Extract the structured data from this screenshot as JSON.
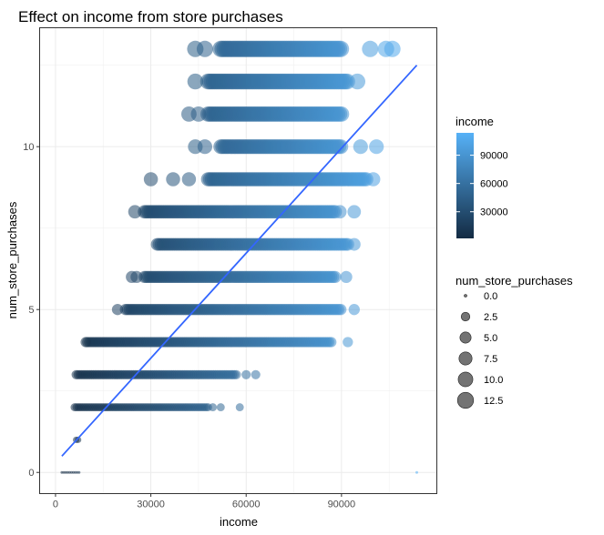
{
  "chart_data": {
    "type": "scatter",
    "title": "Effect on income from store purchases",
    "xlabel": "income",
    "ylabel": "num_store_purchases",
    "xlim": [
      -5000,
      120000
    ],
    "ylim": [
      -0.65,
      13.65
    ],
    "x_ticks": [
      0,
      30000,
      60000,
      90000
    ],
    "x_tick_labels": [
      "0",
      "30000",
      "60000",
      "90000"
    ],
    "y_ticks": [
      0,
      5,
      10
    ],
    "y_tick_labels": [
      "0",
      "5",
      "10"
    ],
    "grid": true,
    "theme": "bw",
    "point_alpha": 0.55,
    "color_scale": {
      "name": "income",
      "range": [
        1730,
        113734
      ],
      "low_color": "#132B43",
      "high_color": "#56B1F7",
      "breaks": [
        30000,
        60000,
        90000
      ],
      "labels": [
        "30000",
        "60000",
        "90000"
      ]
    },
    "size_scale": {
      "name": "num_store_purchases",
      "breaks": [
        0,
        2.5,
        5,
        7.5,
        10,
        12.5
      ],
      "labels": [
        "0.0",
        "2.5",
        "5.0",
        "7.5",
        "10.0",
        "12.5"
      ]
    },
    "legend_position": "right",
    "trend_line": {
      "method": "lm",
      "color": "#3366FF",
      "x": [
        2000,
        113700
      ],
      "y": [
        0.5,
        12.5
      ]
    },
    "series": [
      {
        "y": 0,
        "ranges": [
          [
            2000,
            7500
          ]
        ],
        "extra_x": [
          113700
        ]
      },
      {
        "y": 1,
        "ranges": [
          [
            6500,
            7600
          ]
        ],
        "extra_x": []
      },
      {
        "y": 2,
        "ranges": [
          [
            6000,
            48000
          ]
        ],
        "extra_x": [
          49500,
          52000,
          58000
        ]
      },
      {
        "y": 3,
        "ranges": [
          [
            6500,
            57000
          ]
        ],
        "extra_x": [
          60000,
          63000
        ]
      },
      {
        "y": 4,
        "ranges": [
          [
            10000,
            87000
          ]
        ],
        "extra_x": [
          9500,
          92000
        ]
      },
      {
        "y": 5,
        "ranges": [
          [
            22000,
            90000
          ]
        ],
        "extra_x": [
          19500,
          94000
        ]
      },
      {
        "y": 6,
        "ranges": [
          [
            28000,
            88000
          ]
        ],
        "extra_x": [
          24000,
          25500,
          91500
        ]
      },
      {
        "y": 7,
        "ranges": [
          [
            32000,
            92000
          ]
        ],
        "extra_x": [
          94000
        ]
      },
      {
        "y": 8,
        "ranges": [
          [
            28000,
            88000
          ]
        ],
        "extra_x": [
          25000,
          89500,
          94000
        ]
      },
      {
        "y": 9,
        "ranges": [
          [
            48000,
            98000
          ]
        ],
        "extra_x": [
          30000,
          37000,
          42000,
          100000
        ]
      },
      {
        "y": 10,
        "ranges": [
          [
            52000,
            90000
          ]
        ],
        "extra_x": [
          44000,
          47000,
          96000,
          101000
        ]
      },
      {
        "y": 11,
        "ranges": [
          [
            48000,
            90000
          ]
        ],
        "extra_x": [
          42000,
          45000
        ]
      },
      {
        "y": 12,
        "ranges": [
          [
            48000,
            92000
          ]
        ],
        "extra_x": [
          44000,
          95000
        ]
      },
      {
        "y": 13,
        "ranges": [
          [
            52000,
            90000
          ]
        ],
        "extra_x": [
          44000,
          47000,
          99000,
          104000,
          106000
        ]
      }
    ]
  }
}
